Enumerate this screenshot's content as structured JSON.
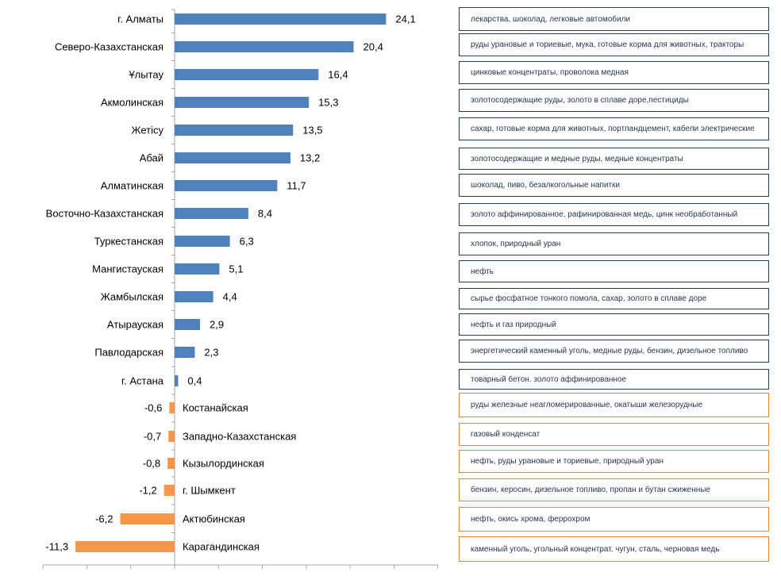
{
  "colors": {
    "positive": "#4f81bd",
    "negative": "#f79646",
    "axis": "#a6a6a6"
  },
  "chart_data": {
    "type": "bar",
    "orientation": "horizontal",
    "title": "",
    "xlabel": "",
    "ylabel": "",
    "xlim": [
      -15,
      30
    ],
    "grid": false,
    "categories": [
      "г. Алматы",
      "Северо-Казахстанская",
      "Ұлытау",
      "Акмолинская",
      "Жетісу",
      "Абай",
      "Алматинская",
      "Восточно-Казахстанская",
      "Туркестанская",
      "Мангистауская",
      "Жамбылская",
      "Атырауская",
      "Павлодарская",
      "г. Астана",
      "Костанайская",
      "Западно-Казахстанская",
      "Кызылординская",
      "г. Шымкент",
      "Актюбинская",
      "Карагандинская"
    ],
    "values": [
      24.1,
      20.4,
      16.4,
      15.3,
      13.5,
      13.2,
      11.7,
      8.4,
      6.3,
      5.1,
      4.4,
      2.9,
      2.3,
      0.4,
      -0.6,
      -0.7,
      -0.8,
      -1.2,
      -6.2,
      -11.3
    ],
    "value_labels": [
      "24,1",
      "20,4",
      "16,4",
      "15,3",
      "13,5",
      "13,2",
      "11,7",
      "8,4",
      "6,3",
      "5,1",
      "4,4",
      "2,9",
      "2,3",
      "0,4",
      "-0,6",
      "-0,7",
      "-0,8",
      "-1,2",
      "-6,2",
      "-11,3"
    ],
    "annotations": [
      "лекарства, шоколад, легковые автомобили",
      "руды урановые и ториевые, мука, готовые корма для животных, тракторы",
      "цинковые концентраты, проволока медная",
      "золотосодержащие руды, золото в сплаве доре,пестициды",
      "сахар, готовые корма для животных, портландцемент, кабели электрические",
      "золотосодержащие и медные руды, медные концентраты",
      "шоколад, пиво, безалкогольные напитки",
      "золото аффинированное, рафинированная медь, цинк необработанный",
      "хлопок, природный уран",
      "нефть",
      "сырье фосфатное тонкого помола, сахар, золото в сплаве доре",
      "нефть и газ природный",
      "энергетический каменный уголь, медные руды, бензин, дизельное топливо",
      "товарный бетон. золото аффинированное",
      "руды железные неагломерированные, окатыши железорудные",
      "газовый конденсат",
      "нефть, руды урановые и ториевые, природный уран",
      "бензин, керосин, дизельное топливо, пропан и бутан сжиженные",
      "нефть, окись хрома, феррохром",
      "каменный уголь, угольный концентрат,  чугун, сталь, черновая медь"
    ]
  }
}
